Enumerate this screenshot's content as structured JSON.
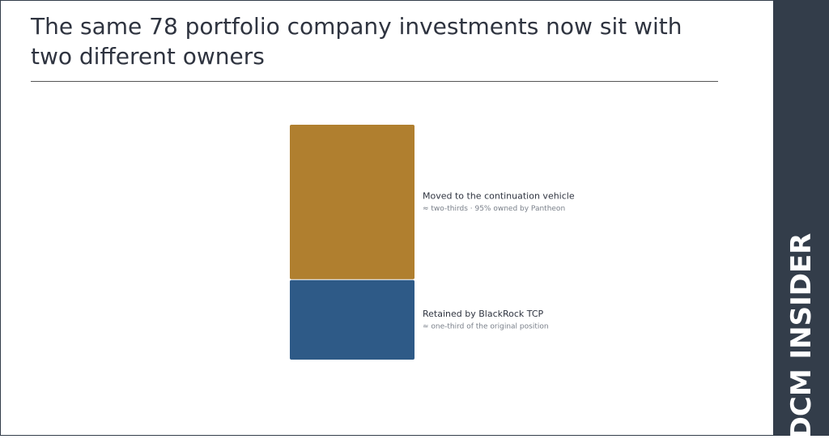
{
  "chart_data": {
    "type": "stacked-bar",
    "title": "The same 78 portfolio company investments now sit with two different owners",
    "series": [
      {
        "name": "Moved to the continuation vehicle",
        "note": "≈ two-thirds · 95% owned by Pantheon",
        "color": "#b07f2f",
        "values": [
          66
        ]
      },
      {
        "name": "Retained by BlackRock TCP",
        "note": "≈ one-third of the original position",
        "color": "#2e5a87",
        "values": [
          34
        ]
      }
    ]
  },
  "brand": "DCM INSIDER"
}
